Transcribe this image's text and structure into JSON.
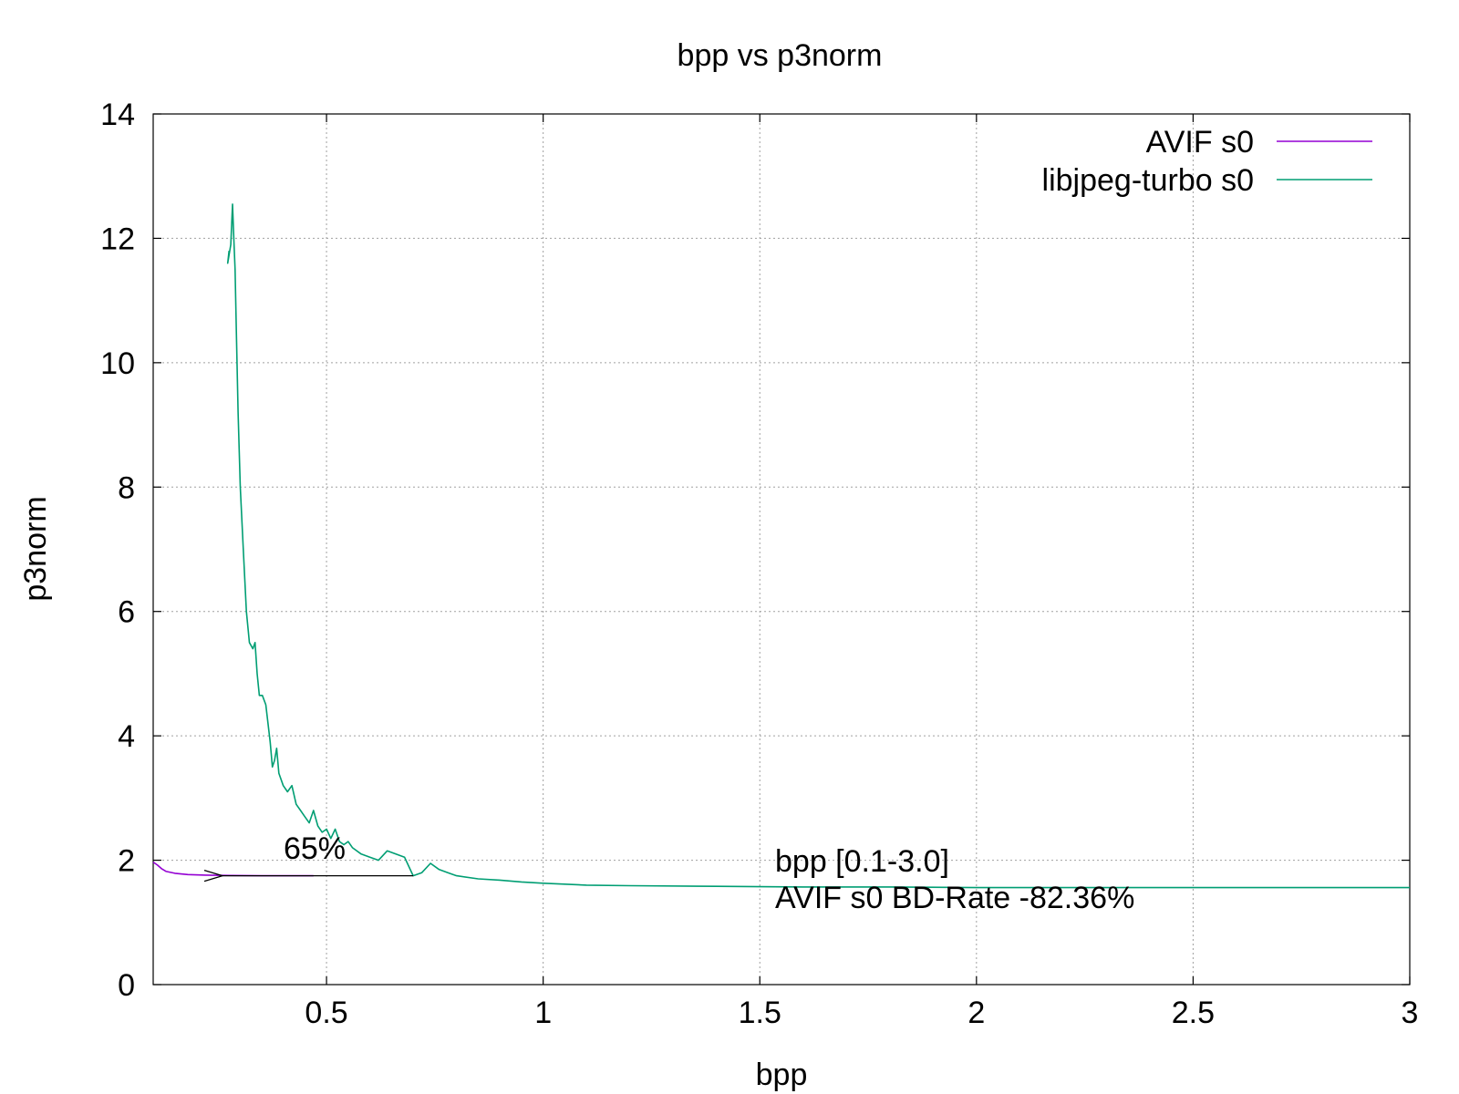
{
  "chart_data": {
    "type": "line",
    "title": "bpp vs p3norm",
    "xlabel": "bpp",
    "ylabel": "p3norm",
    "xlim": [
      0.1,
      3.0
    ],
    "ylim": [
      0,
      14
    ],
    "xticks": [
      0.5,
      1,
      1.5,
      2,
      2.5,
      3
    ],
    "xtick_labels": [
      "0.5",
      "1",
      "1.5",
      "2",
      "2.5",
      "3"
    ],
    "yticks": [
      0,
      2,
      4,
      6,
      8,
      10,
      12,
      14
    ],
    "ytick_labels": [
      "0",
      "2",
      "4",
      "6",
      "8",
      "10",
      "12",
      "14"
    ],
    "grid": true,
    "legend_position": "top-right",
    "series": [
      {
        "name": "AVIF s0",
        "color": "#9400d3",
        "x": [
          0.1,
          0.11,
          0.12,
          0.13,
          0.15,
          0.18,
          0.22,
          0.28,
          0.35,
          0.42,
          0.47
        ],
        "y": [
          1.97,
          1.92,
          1.86,
          1.82,
          1.79,
          1.77,
          1.76,
          1.755,
          1.75,
          1.75,
          1.75
        ]
      },
      {
        "name": "libjpeg-turbo s0",
        "color": "#009e73",
        "x": [
          0.275,
          0.272,
          0.279,
          0.283,
          0.286,
          0.289,
          0.292,
          0.296,
          0.301,
          0.308,
          0.315,
          0.322,
          0.33,
          0.335,
          0.34,
          0.345,
          0.352,
          0.36,
          0.365,
          0.37,
          0.375,
          0.38,
          0.385,
          0.39,
          0.4,
          0.41,
          0.42,
          0.43,
          0.44,
          0.45,
          0.46,
          0.47,
          0.48,
          0.49,
          0.5,
          0.51,
          0.52,
          0.53,
          0.54,
          0.55,
          0.56,
          0.58,
          0.6,
          0.62,
          0.64,
          0.66,
          0.68,
          0.7,
          0.72,
          0.74,
          0.76,
          0.78,
          0.8,
          0.85,
          0.9,
          0.95,
          1.0,
          1.1,
          1.2,
          1.4,
          1.6,
          1.8,
          2.0,
          2.5,
          3.0
        ],
        "y": [
          11.8,
          11.6,
          11.9,
          12.55,
          12.0,
          11.5,
          10.5,
          9.2,
          8.0,
          7.0,
          6.0,
          5.5,
          5.4,
          5.5,
          5.0,
          4.65,
          4.65,
          4.5,
          4.2,
          3.9,
          3.5,
          3.6,
          3.8,
          3.4,
          3.2,
          3.1,
          3.2,
          2.9,
          2.8,
          2.7,
          2.6,
          2.8,
          2.55,
          2.45,
          2.5,
          2.35,
          2.5,
          2.3,
          2.25,
          2.3,
          2.2,
          2.1,
          2.05,
          2.0,
          2.15,
          2.1,
          2.05,
          1.75,
          1.8,
          1.95,
          1.85,
          1.8,
          1.75,
          1.7,
          1.68,
          1.65,
          1.63,
          1.6,
          1.59,
          1.58,
          1.57,
          1.57,
          1.56,
          1.56,
          1.56
        ]
      }
    ],
    "annotations": [
      {
        "text": "65%",
        "color": "#000000",
        "arrow_from": [
          0.7,
          1.75
        ],
        "arrow_to": [
          0.26,
          1.75
        ]
      },
      {
        "lines": [
          "bpp [0.1-3.0]",
          "AVIF s0 BD-Rate -82.36%"
        ],
        "color": "#00ee00"
      }
    ]
  }
}
